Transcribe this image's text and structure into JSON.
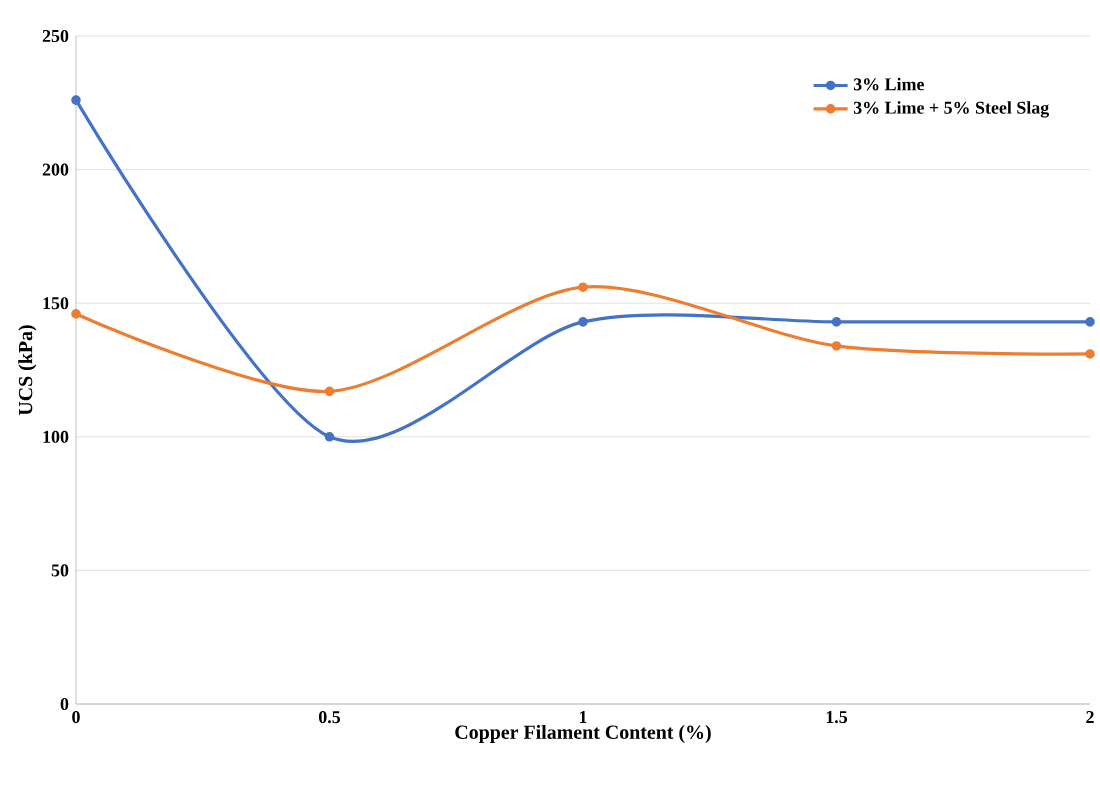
{
  "chart_data": {
    "type": "line",
    "xlabel": "Copper Filament Content (%)",
    "ylabel": "UCS (kPa)",
    "x": [
      0,
      0.5,
      1,
      1.5,
      2
    ],
    "series": [
      {
        "name": "3% Lime",
        "color": "#4472c4",
        "values": [
          226,
          100,
          143,
          143,
          143
        ]
      },
      {
        "name": "3% Lime + 5% Steel Slag",
        "color": "#ed7d31",
        "values": [
          146,
          117,
          156,
          134,
          131
        ]
      }
    ],
    "xlim": [
      0,
      2
    ],
    "xticks": [
      0,
      0.5,
      1,
      1.5,
      2
    ],
    "ylim": [
      0,
      250
    ],
    "yticks": [
      0,
      50,
      100,
      150,
      200,
      250
    ],
    "grid": "y",
    "legend": "top right",
    "marker": "circle",
    "line_style": "solid"
  }
}
